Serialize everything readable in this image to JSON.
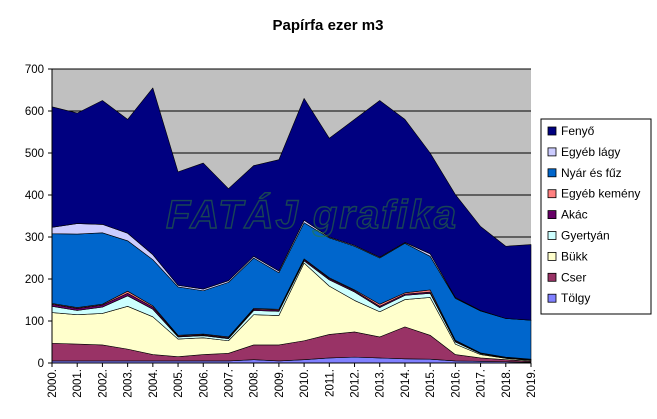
{
  "chart_data": {
    "type": "area",
    "title": "Papírfa ezer m3",
    "watermark": "FATÁJ grafika",
    "ylim": [
      0,
      700
    ],
    "yticks": [
      0,
      100,
      200,
      300,
      400,
      500,
      600,
      700
    ],
    "grid": true,
    "legend_position": "right",
    "categories": [
      "2000.",
      "2001.",
      "2002.",
      "2003.",
      "2004.",
      "2005.",
      "2006.",
      "2007.",
      "2008.",
      "2009.",
      "2010.",
      "2011.",
      "2012.",
      "2013.",
      "2014.",
      "2015.",
      "2016.",
      "2017.",
      "2018.",
      "2019."
    ],
    "series": [
      {
        "name": "Tölgy",
        "color": "#8080FF",
        "values": [
          5,
          5,
          5,
          5,
          5,
          5,
          5,
          5,
          8,
          5,
          8,
          12,
          14,
          12,
          10,
          9,
          5,
          4,
          3,
          2
        ]
      },
      {
        "name": "Cser",
        "color": "#993366",
        "values": [
          42,
          40,
          38,
          28,
          15,
          10,
          15,
          18,
          35,
          38,
          45,
          56,
          60,
          50,
          76,
          57,
          15,
          8,
          5,
          2
        ]
      },
      {
        "name": "Bükk",
        "color": "#FFFFCC",
        "values": [
          73,
          70,
          75,
          102,
          90,
          42,
          40,
          30,
          72,
          70,
          185,
          115,
          75,
          60,
          65,
          90,
          25,
          8,
          3,
          2
        ]
      },
      {
        "name": "Gyertyán",
        "color": "#CCFFFF",
        "values": [
          15,
          10,
          15,
          25,
          18,
          5,
          5,
          5,
          10,
          10,
          5,
          15,
          20,
          10,
          10,
          10,
          5,
          2,
          1,
          1
        ]
      },
      {
        "name": "Akác",
        "color": "#660066",
        "values": [
          5,
          5,
          5,
          6,
          5,
          2,
          2,
          2,
          3,
          3,
          3,
          3,
          3,
          3,
          3,
          3,
          2,
          1,
          1,
          1
        ]
      },
      {
        "name": "Egyéb kemény",
        "color": "#FF8080",
        "values": [
          2,
          2,
          2,
          5,
          3,
          2,
          2,
          2,
          2,
          2,
          2,
          2,
          2,
          5,
          3,
          5,
          2,
          1,
          1,
          1
        ]
      },
      {
        "name": "Nyár és fűz",
        "color": "#0066CC",
        "values": [
          166,
          175,
          170,
          120,
          110,
          115,
          103,
          130,
          120,
          87,
          86,
          95,
          104,
          110,
          118,
          80,
          100,
          100,
          92,
          93
        ]
      },
      {
        "name": "Egyéb lágy",
        "color": "#CCCCFF",
        "values": [
          15,
          25,
          20,
          18,
          12,
          4,
          4,
          4,
          4,
          4,
          6,
          2,
          2,
          2,
          2,
          6,
          2,
          1,
          0,
          0
        ]
      },
      {
        "name": "Fenyő",
        "color": "#000080",
        "values": [
          287,
          263,
          295,
          271,
          397,
          270,
          300,
          219,
          216,
          265,
          290,
          235,
          300,
          373,
          293,
          240,
          245,
          200,
          172,
          180
        ]
      }
    ]
  }
}
